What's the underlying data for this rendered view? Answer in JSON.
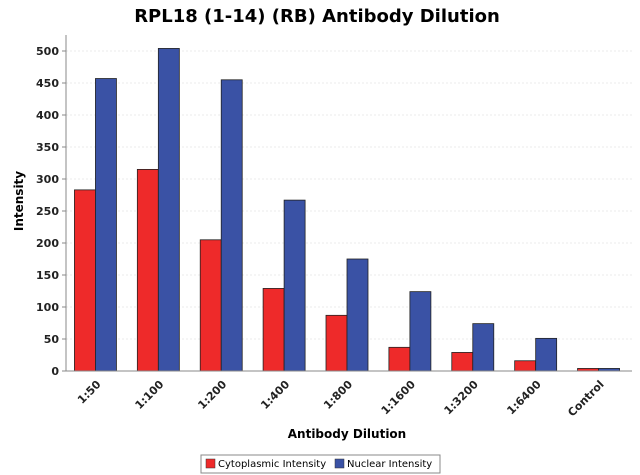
{
  "chart_data": {
    "type": "bar",
    "title": "RPL18 (1-14) (RB) Antibody Dilution",
    "xlabel": "Antibody Dilution",
    "ylabel": "Intensity",
    "ylim": [
      0,
      525
    ],
    "yticks": [
      0,
      50,
      100,
      150,
      200,
      250,
      300,
      350,
      400,
      450,
      500
    ],
    "grid": true,
    "legend_position": "bottom-center",
    "categories": [
      "1:50",
      "1:100",
      "1:200",
      "1:400",
      "1:800",
      "1:1600",
      "1:3200",
      "1:6400",
      "Control"
    ],
    "series": [
      {
        "name": "Cytoplasmic Intensity",
        "color": "#ee2a2a",
        "values": [
          283,
          315,
          205,
          129,
          87,
          37,
          29,
          16,
          4
        ]
      },
      {
        "name": "Nuclear Intensity",
        "color": "#3a52a5",
        "values": [
          457,
          504,
          455,
          267,
          175,
          124,
          74,
          51,
          4
        ]
      }
    ]
  }
}
